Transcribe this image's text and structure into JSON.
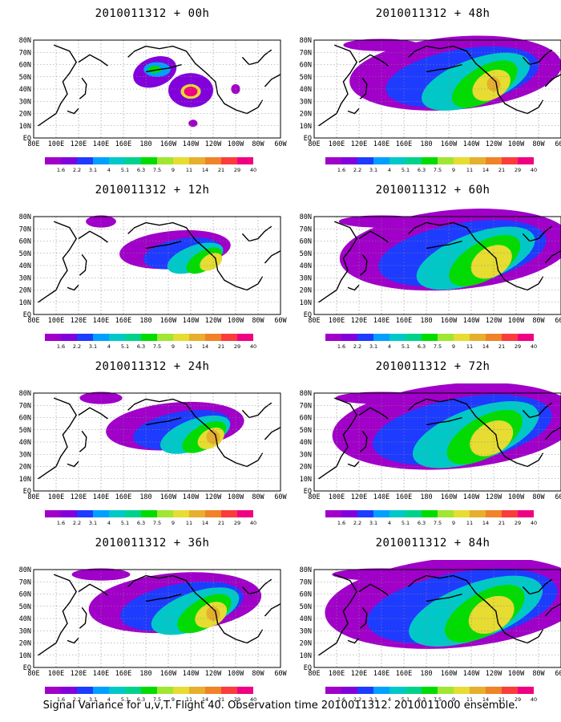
{
  "chart_data": {
    "type": "heatmap",
    "caption": "Signal Variance for u,v,T. Flight 40. Observation time 2010011312. 2010011000 ensemble.",
    "lat_ticks": [
      "EQ",
      "10N",
      "20N",
      "30N",
      "40N",
      "50N",
      "60N",
      "70N",
      "80N"
    ],
    "lon_ticks": [
      "80E",
      "100E",
      "120E",
      "140E",
      "160E",
      "180",
      "160W",
      "140W",
      "120W",
      "100W",
      "80W",
      "60W"
    ],
    "colorbar": {
      "labels": [
        "1.6",
        "2.2",
        "3.1",
        "4",
        "5.1",
        "6.3",
        "7.5",
        "9",
        "11",
        "14",
        "21",
        "29",
        "40"
      ],
      "colors": [
        "#a000c8",
        "#8200dc",
        "#1e3cff",
        "#00a0ff",
        "#00c8c8",
        "#00d28c",
        "#00dc00",
        "#a0e632",
        "#e6dc32",
        "#e6af2d",
        "#f08228",
        "#fa3c3c",
        "#f00082"
      ]
    },
    "panels": [
      {
        "title": "2010011312 + 00h",
        "coverage": 0.1,
        "peak": "40"
      },
      {
        "title": "2010011312 + 12h",
        "coverage": 0.27,
        "peak": "11"
      },
      {
        "title": "2010011312 + 24h",
        "coverage": 0.38,
        "peak": "14"
      },
      {
        "title": "2010011312 + 36h",
        "coverage": 0.52,
        "peak": "14"
      },
      {
        "title": "2010011312 + 48h",
        "coverage": 0.68,
        "peak": "14"
      },
      {
        "title": "2010011312 + 60h",
        "coverage": 0.76,
        "peak": "11"
      },
      {
        "title": "2010011312 + 72h",
        "coverage": 0.82,
        "peak": "11"
      },
      {
        "title": "2010011312 + 84h",
        "coverage": 0.88,
        "peak": "11"
      }
    ]
  }
}
